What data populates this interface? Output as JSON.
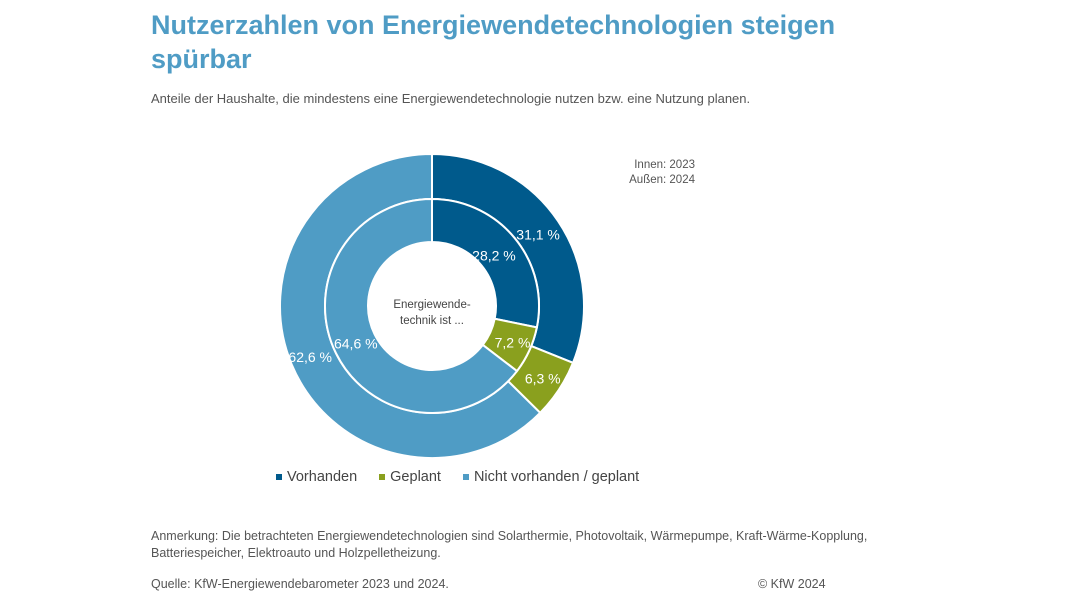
{
  "title": "Nutzerzahlen von Energiewendetechnologien steigen spürbar",
  "subtitle": "Anteile der Haushalte, die mindestens eine Energiewendetechnologie nutzen bzw. eine Nutzung planen.",
  "ring_note": {
    "inner": "Innen: 2023",
    "outer": "Außen: 2024"
  },
  "center_label": {
    "line1": "Energiewende-",
    "line2": "technik ist  ..."
  },
  "legend": [
    {
      "label": "Vorhanden",
      "color": "#005a8c"
    },
    {
      "label": "Geplant",
      "color": "#8aa01e"
    },
    {
      "label": "Nicht vorhanden / geplant",
      "color": "#4f9cc5"
    }
  ],
  "note": "Anmerkung: Die betrachteten Energiewendetechnologien sind Solarthermie, Photovoltaik, Wärmepumpe, Kraft-Wärme-Kopplung, Batteriespeicher, Elektroauto und Holzpelletheizung.",
  "source": "Quelle: KfW-Energiewendebarometer 2023 und 2024.",
  "copyright": "© KfW 2024",
  "chart_data": {
    "type": "pie",
    "subtype": "nested-donut",
    "categories": [
      "Vorhanden",
      "Geplant",
      "Nicht vorhanden / geplant"
    ],
    "colors": [
      "#005a8c",
      "#8aa01e",
      "#4f9cc5"
    ],
    "series": [
      {
        "name": "Innen: 2023",
        "ring": "inner",
        "values": [
          28.2,
          7.2,
          64.6
        ],
        "labels": [
          "28,2 %",
          "7,2 %",
          "64,6 %"
        ]
      },
      {
        "name": "Außen: 2024",
        "ring": "outer",
        "values": [
          31.1,
          6.3,
          62.6
        ],
        "labels": [
          "31,1 %",
          "6,3 %",
          "62,6 %"
        ]
      }
    ],
    "legend_position": "bottom"
  }
}
